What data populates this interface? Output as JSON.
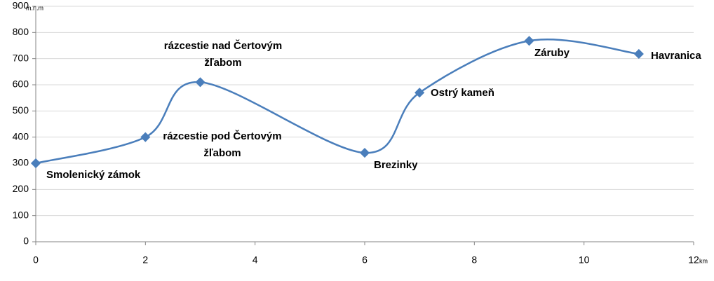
{
  "chart_data": {
    "type": "line",
    "y_unit": "m.n.m",
    "x_unit": "km",
    "x": [
      0,
      2,
      3,
      6,
      7,
      9,
      11
    ],
    "series": [
      {
        "color": "#4a7ebb",
        "values": [
          300,
          400,
          610,
          340,
          570,
          768,
          718
        ]
      }
    ],
    "point_labels": [
      [
        "Smolenický zámok"
      ],
      [
        "rázcestie pod Čertovým",
        "žľabom"
      ],
      [
        "rázcestie nad Čertovým",
        "žľabom"
      ],
      [
        "Brezinky"
      ],
      [
        "Ostrý kameň"
      ],
      [
        "Záruby"
      ],
      [
        "Havranica"
      ]
    ],
    "xlim": [
      0,
      12
    ],
    "xticks": [
      0,
      2,
      4,
      6,
      8,
      10,
      12
    ],
    "ylim": [
      0,
      900
    ],
    "yticks": [
      0,
      100,
      200,
      300,
      400,
      500,
      600,
      700,
      800,
      900
    ],
    "grid": true
  }
}
